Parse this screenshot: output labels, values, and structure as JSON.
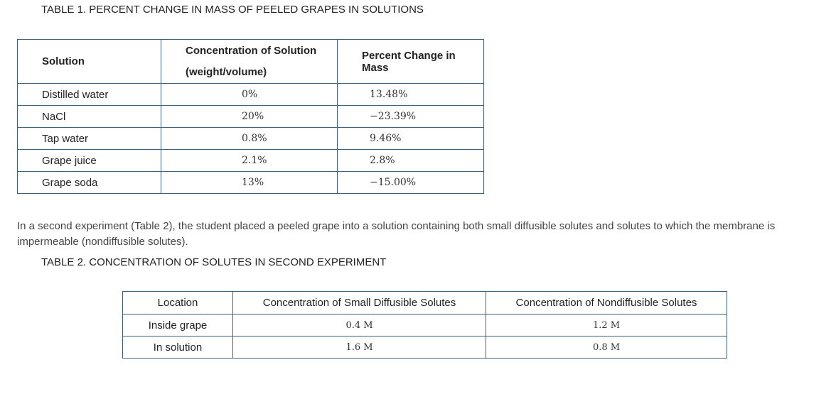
{
  "table1": {
    "title": "TABLE 1. PERCENT CHANGE IN MASS OF PEELED GRAPES IN SOLUTIONS",
    "headers": [
      "Solution",
      "Concentration of Solution",
      "(weight/volume)",
      "Percent Change in Mass"
    ],
    "rows": [
      [
        "Distilled water",
        "0%",
        "13.48%"
      ],
      [
        "NaCl",
        "20%",
        "−23.39%"
      ],
      [
        "Tap water",
        "0.8%",
        "9.46%"
      ],
      [
        "Grape juice",
        "2.1%",
        "2.8%"
      ],
      [
        "Grape soda",
        "13%",
        "−15.00%"
      ]
    ]
  },
  "paragraph": "In a second experiment (Table 2), the student placed a peeled grape into a solution containing both small diffusible solutes and solutes to which the membrane is impermeable (nondiffusible solutes).",
  "table2": {
    "title": "TABLE 2. CONCENTRATION OF SOLUTES IN SECOND EXPERIMENT",
    "headers": [
      "Location",
      "Concentration of Small Diffusible Solutes",
      "Concentration of Nondiffusible Solutes"
    ],
    "rows": [
      [
        "Inside grape",
        "0.4 M",
        "1.2 M"
      ],
      [
        "In solution",
        "1.6 M",
        "0.8 M"
      ]
    ]
  }
}
